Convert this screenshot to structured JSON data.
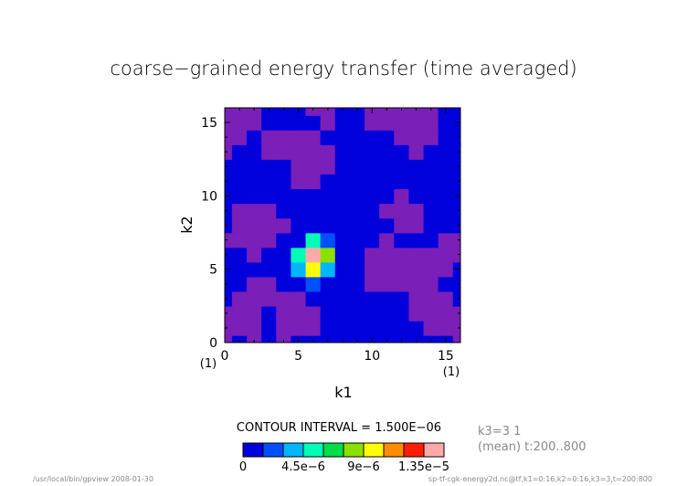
{
  "chart_data": {
    "type": "heatmap",
    "title": "coarse−grained energy transfer (time averaged)",
    "xlabel": "k1",
    "ylabel": "k2",
    "x_unit": "(1)",
    "y_unit": "(1)",
    "xlim": [
      0,
      16
    ],
    "ylim": [
      0,
      16
    ],
    "x_ticks": [
      "0",
      "5",
      "10",
      "15"
    ],
    "y_ticks": [
      "0",
      "5",
      "10",
      "15"
    ],
    "contour_interval_text": "CONTOUR INTERVAL = 1.500E−06",
    "side_info": [
      "k3=3 1",
      "(mean) t:200..800"
    ],
    "colorbar": {
      "levels": [
        0,
        1.5e-06,
        3e-06,
        4.5e-06,
        6e-06,
        7.5e-06,
        9e-06,
        1.05e-05,
        1.2e-05,
        1.35e-05,
        1.5e-05
      ],
      "labels": [
        {
          "value": 0,
          "text": "0"
        },
        {
          "value": 4.5e-06,
          "text": "4.5e−6"
        },
        {
          "value": 9e-06,
          "text": "9e−6"
        },
        {
          "value": 1.35e-05,
          "text": "1.35e−5"
        }
      ],
      "colors": [
        "#0000dd",
        "#0050ff",
        "#00b6ff",
        "#00ffb6",
        "#00dd48",
        "#8be000",
        "#ffff00",
        "#ff8c00",
        "#ff1e00",
        "#ffaaaa"
      ]
    },
    "grid_step": 1,
    "z_description": "approximate values on integer grid k2 (rows, 0..16) by k1 (cols, 0..16)",
    "z": [
      [
        -2e-07,
        3e-07,
        -3e-07,
        2e-07,
        -2e-07,
        3e-07,
        2e-07,
        1e-07,
        3e-07,
        2e-07,
        3e-07,
        3e-07,
        2e-07,
        3e-07,
        2e-07,
        3e-07,
        -2e-07
      ],
      [
        -3e-07,
        -2e-07,
        -3e-07,
        2e-07,
        -2e-07,
        -3e-07,
        -2e-07,
        2e-07,
        3e-07,
        2e-07,
        3e-07,
        2e-07,
        3e-07,
        2e-07,
        -3e-07,
        -2e-07,
        -3e-07
      ],
      [
        -2e-07,
        -3e-07,
        -2e-07,
        3e-07,
        -3e-07,
        -2e-07,
        -3e-07,
        3e-07,
        2e-07,
        3e-07,
        2e-07,
        3e-07,
        2e-07,
        -2e-07,
        -3e-07,
        -2e-07,
        -2e-07
      ],
      [
        3e-07,
        -2e-07,
        -3e-07,
        -2e-07,
        -3e-07,
        -2e-07,
        3e-07,
        2e-07,
        3e-07,
        2e-07,
        3e-07,
        2e-07,
        3e-07,
        -3e-07,
        -2e-07,
        -3e-07,
        3e-07
      ],
      [
        2e-07,
        3e-07,
        -2e-07,
        -3e-07,
        2e-07,
        2e-07,
        1.5e-06,
        9e-07,
        3e-07,
        2e-07,
        -2e-07,
        -3e-07,
        -2e-07,
        -3e-07,
        -3e-07,
        2e-07,
        2e-07
      ],
      [
        2e-07,
        2e-07,
        3e-07,
        2e-07,
        5e-07,
        3.2e-06,
        9e-06,
        3.8e-06,
        6e-07,
        3e-07,
        -3e-07,
        -2e-07,
        -3e-07,
        -2e-07,
        -2e-07,
        -3e-07,
        3e-07
      ],
      [
        3e-07,
        2e-07,
        -2e-07,
        2e-07,
        3e-07,
        5e-06,
        1.55e-05,
        8e-06,
        1e-06,
        2e-07,
        -2e-07,
        -3e-07,
        -2e-07,
        -3e-07,
        -3e-07,
        -2e-07,
        -2e-07
      ],
      [
        -2e-07,
        -3e-07,
        -2e-07,
        -3e-07,
        2e-07,
        9e-07,
        4.5e-06,
        2.6e-06,
        5e-07,
        3e-07,
        2e-07,
        -2e-07,
        3e-07,
        2e-07,
        3e-07,
        -3e-07,
        -2e-07
      ],
      [
        2e-07,
        -3e-07,
        -2e-07,
        -3e-07,
        -2e-07,
        3e-07,
        6e-07,
        4e-07,
        2e-07,
        2e-07,
        3e-07,
        2e-07,
        -3e-07,
        -2e-07,
        2e-07,
        3e-07,
        2e-07
      ],
      [
        3e-07,
        -2e-07,
        -3e-07,
        -2e-07,
        3e-07,
        2e-07,
        3e-07,
        2e-07,
        3e-07,
        2e-07,
        3e-07,
        -2e-07,
        -3e-07,
        -2e-07,
        3e-07,
        2e-07,
        3e-07
      ],
      [
        2e-07,
        3e-07,
        2e-07,
        3e-07,
        2e-07,
        3e-07,
        2e-07,
        3e-07,
        2e-07,
        3e-07,
        2e-07,
        3e-07,
        -2e-07,
        3e-07,
        2e-07,
        3e-07,
        2e-07
      ],
      [
        3e-07,
        2e-07,
        3e-07,
        2e-07,
        3e-07,
        -2e-07,
        -3e-07,
        2e-07,
        3e-07,
        2e-07,
        3e-07,
        2e-07,
        3e-07,
        2e-07,
        3e-07,
        2e-07,
        3e-07
      ],
      [
        2e-07,
        3e-07,
        2e-07,
        3e-07,
        2e-07,
        -3e-07,
        -2e-07,
        -3e-07,
        2e-07,
        3e-07,
        2e-07,
        3e-07,
        2e-07,
        3e-07,
        2e-07,
        3e-07,
        2e-07
      ],
      [
        -2e-07,
        2e-07,
        3e-07,
        -2e-07,
        -3e-07,
        -2e-07,
        -3e-07,
        -2e-07,
        3e-07,
        2e-07,
        3e-07,
        2e-07,
        3e-07,
        -2e-07,
        3e-07,
        2e-07,
        3e-07
      ],
      [
        -3e-07,
        -2e-07,
        2e-07,
        -3e-07,
        -2e-07,
        -3e-07,
        -2e-07,
        3e-07,
        2e-07,
        3e-07,
        2e-07,
        3e-07,
        -3e-07,
        -2e-07,
        -3e-07,
        2e-07,
        2e-07
      ],
      [
        -2e-07,
        -3e-07,
        -2e-07,
        3e-07,
        2e-07,
        3e-07,
        2e-07,
        -3e-07,
        3e-07,
        2e-07,
        -2e-07,
        -3e-07,
        -2e-07,
        -3e-07,
        -2e-07,
        3e-07,
        2e-07
      ],
      [
        -3e-07,
        -2e-07,
        -3e-07,
        2e-07,
        3e-07,
        2e-07,
        -2e-07,
        -2e-07,
        2e-07,
        3e-07,
        -3e-07,
        -2e-07,
        -3e-07,
        -2e-07,
        -3e-07,
        2e-07,
        3e-07
      ]
    ],
    "negative_color": "#7a1fb8"
  },
  "footer": {
    "left": "/usr/local/bin/gpview  2008-01-30",
    "right": "sp-tf-cgk-energy2d.nc@tf,k1=0:16,k2=0:16,k3=3,t=200:800"
  }
}
